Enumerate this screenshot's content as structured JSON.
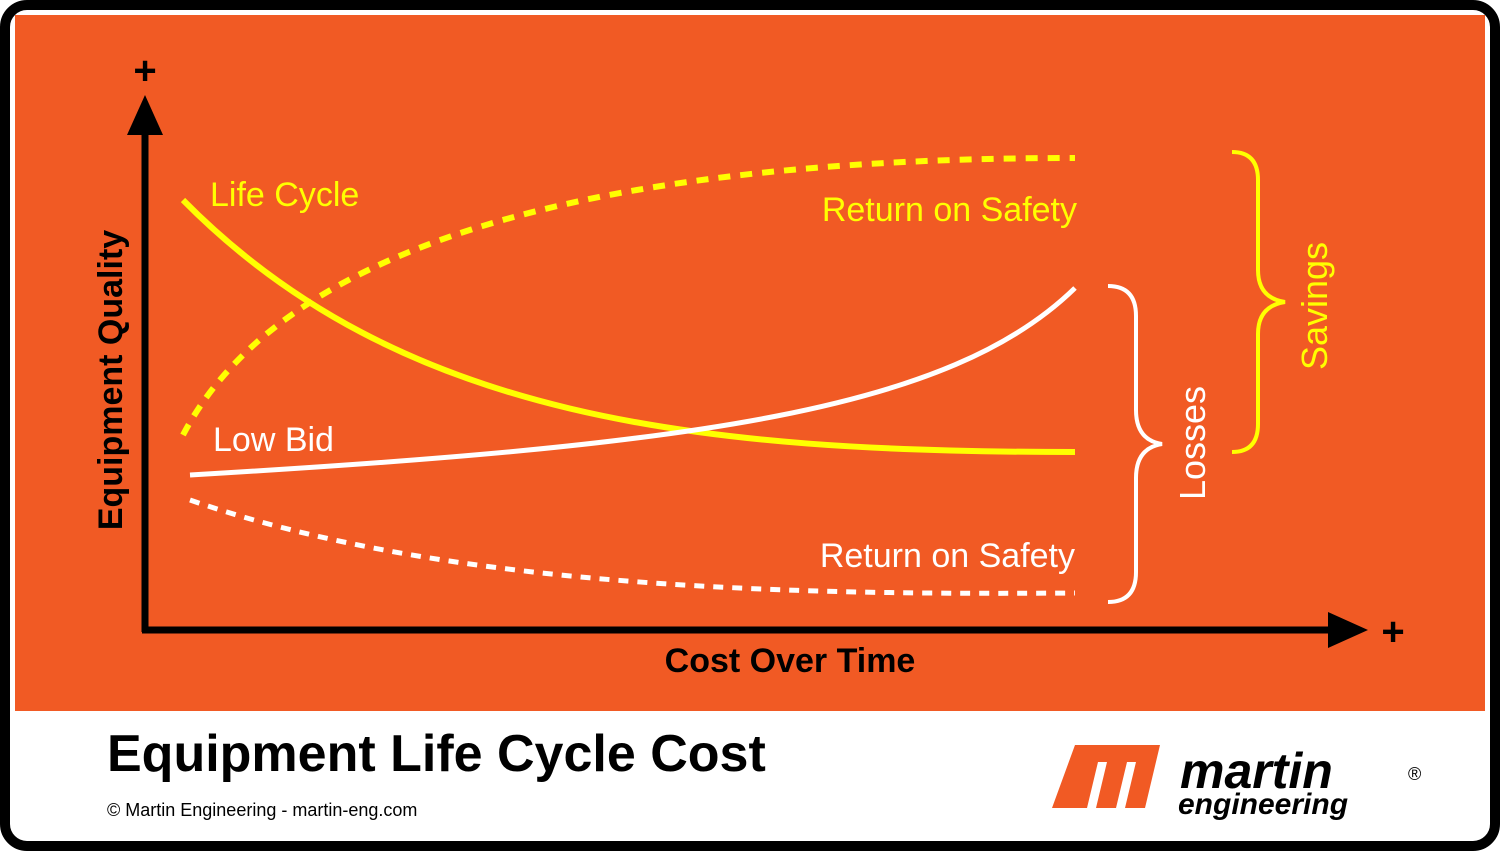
{
  "diagram": {
    "y_axis_label": "Equipment Quality",
    "x_axis_label": "Cost Over Time",
    "y_axis_end": "+",
    "x_axis_end": "+",
    "curves": [
      {
        "label": "Life Cycle"
      },
      {
        "label": "Return on Safety"
      },
      {
        "label": "Low Bid"
      },
      {
        "label": "Return on Safety"
      }
    ],
    "braces": [
      {
        "label": "Savings"
      },
      {
        "label": "Losses"
      }
    ]
  },
  "footer": {
    "title": "Equipment Life Cycle Cost",
    "copyright": "© Martin Engineering - martin-eng.com",
    "logo": {
      "name": "martin",
      "sub": "engineering",
      "mark": "®"
    }
  }
}
